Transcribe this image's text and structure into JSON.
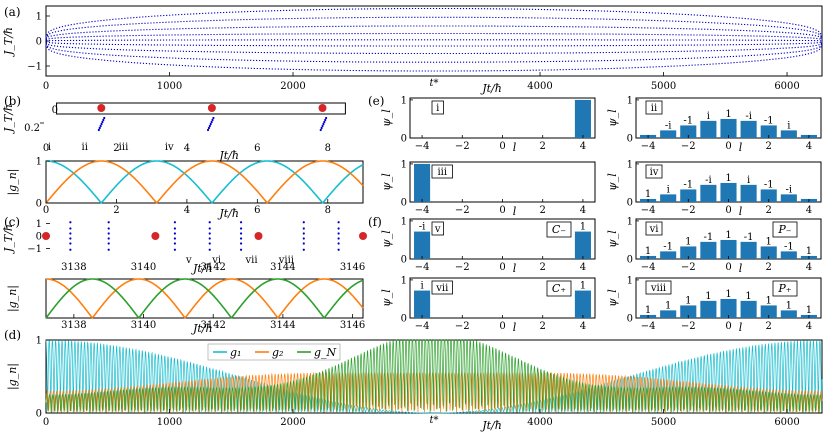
{
  "panel_labels": {
    "a": "(a)",
    "b": "(b)",
    "c": "(c)",
    "d": "(d)",
    "e": "(e)",
    "f": "(f)"
  },
  "axis_labels": {
    "JT": "J_T/ħ",
    "gn": "|g_n|",
    "psi": "ψ_l",
    "Jt": "Jt/ħ",
    "l": "l"
  },
  "tstar": "t*",
  "colors": {
    "g1": "#17becf",
    "g2": "#ff7f0e",
    "gN": "#2ca02c",
    "eig": "#0000cc",
    "red": "#d62728",
    "bar": "#1f77b4"
  },
  "markers_b": [
    "i",
    "ii",
    "iii",
    "iv"
  ],
  "markers_c": [
    "v",
    "vi",
    "vii",
    "viii"
  ],
  "legend": [
    "g₁",
    "g₂",
    "g_N"
  ],
  "chart_data": [
    {
      "id": "a",
      "type": "line",
      "xlabel": "Jt/ħ",
      "ylabel": "J_T/ħ",
      "xlim": [
        0,
        6283
      ],
      "ylim": [
        -1.4,
        1.4
      ],
      "xticks": [
        0,
        1000,
        2000,
        4000,
        5000,
        6000
      ],
      "yticks": [
        -1,
        0,
        1
      ],
      "series_count": 9,
      "mid_amplitudes": [
        1.3,
        0.95,
        0.6,
        0.3,
        0.05,
        -0.2,
        -0.5,
        -0.85,
        -1.2
      ],
      "end_amplitudes": [
        0.12,
        0.09,
        0.06,
        0.03,
        0,
        -0.03,
        -0.06,
        -0.09,
        -0.12
      ]
    },
    {
      "id": "b-top",
      "type": "scatter",
      "xlabel": "Jt/ħ",
      "ylabel": "J_T/ħ",
      "xlim": [
        0,
        9
      ],
      "xticks": [
        0,
        2,
        4,
        6,
        8
      ],
      "yticks": [
        0,
        0.2
      ],
      "red_points_x": [
        1.57,
        4.71,
        7.85
      ],
      "eig_clusters_x": [
        1.5,
        4.6,
        7.8
      ]
    },
    {
      "id": "b-bot",
      "type": "line",
      "xlabel": "Jt/ħ",
      "ylabel": "|g_n|",
      "xlim": [
        0,
        9
      ],
      "ylim": [
        0,
        1
      ],
      "xticks": [
        0,
        2,
        4,
        6,
        8
      ],
      "yticks": [
        0,
        1
      ],
      "series": [
        {
          "name": "g₁",
          "func": "|cos t|"
        },
        {
          "name": "g₂",
          "func": "|sin t|"
        }
      ]
    },
    {
      "id": "c-top",
      "type": "scatter",
      "xlabel": "Jt/ħ",
      "ylabel": "J_T/ħ",
      "xlim": [
        3137.2,
        3146.3
      ],
      "xticks": [
        3138,
        3140,
        3142,
        3144,
        3146
      ],
      "yticks": [
        -1,
        0,
        1
      ],
      "red_points_x": [
        3137.2,
        3140.34,
        3143.3,
        3146.3
      ],
      "eig_clusters_x": [
        3137.9,
        3139.0,
        3140.9,
        3141.9,
        3142.8,
        3144.6,
        3145.6
      ]
    },
    {
      "id": "c-bot",
      "type": "line",
      "xlabel": "Jt/ħ",
      "ylabel": "|g_n|",
      "xlim": [
        3137.2,
        3146.3
      ],
      "ylim": [
        0,
        1
      ],
      "xticks": [
        3138,
        3140,
        3142,
        3144,
        3146
      ],
      "series": [
        {
          "name": "g₂"
        },
        {
          "name": "g_N"
        }
      ]
    },
    {
      "id": "d",
      "type": "line",
      "xlabel": "Jt/ħ",
      "ylabel": "|g_n|",
      "xlim": [
        0,
        6283
      ],
      "ylim": [
        0,
        1
      ],
      "xticks": [
        0,
        1000,
        2000,
        4000,
        5000,
        6000
      ],
      "yticks": [
        0,
        1
      ],
      "series": [
        {
          "name": "g₁"
        },
        {
          "name": "g₂"
        },
        {
          "name": "g_N"
        }
      ]
    },
    {
      "id": "e-f",
      "type": "bar",
      "xlabel": "l",
      "ylabel": "ψ_l",
      "x": [
        -4,
        -3,
        -2,
        -1,
        0,
        1,
        2,
        3,
        4
      ],
      "xticks": [
        -4,
        -2,
        0,
        2,
        4
      ],
      "yticks": [
        0,
        1
      ],
      "panels": [
        {
          "tag": "i",
          "values": [
            0,
            0,
            0,
            0,
            0,
            0,
            0,
            0,
            1
          ],
          "labels": []
        },
        {
          "tag": "iii",
          "values": [
            1,
            0,
            0,
            0,
            0,
            0,
            0,
            0,
            0
          ],
          "labels": []
        },
        {
          "tag": "v",
          "values": [
            0.72,
            0,
            0,
            0,
            0,
            0,
            0,
            0,
            0.72
          ],
          "labels": [
            "-i",
            "",
            "",
            "",
            "",
            "",
            "",
            "",
            "1"
          ],
          "side": "C₋"
        },
        {
          "tag": "vii",
          "values": [
            0.72,
            0,
            0,
            0,
            0,
            0,
            0,
            0,
            0.72
          ],
          "labels": [
            "i",
            "",
            "",
            "",
            "",
            "",
            "",
            "",
            "1"
          ],
          "side": "C₊"
        },
        {
          "tag": "ii",
          "values": [
            0.08,
            0.2,
            0.33,
            0.45,
            0.5,
            0.45,
            0.33,
            0.2,
            0.08
          ],
          "labels": [
            "",
            "-i",
            "-1",
            "i",
            "1",
            "-i",
            "-1",
            "i",
            ""
          ]
        },
        {
          "tag": "iv",
          "values": [
            0.08,
            0.2,
            0.33,
            0.45,
            0.5,
            0.45,
            0.33,
            0.2,
            0.08
          ],
          "labels": [
            "1",
            "i",
            "-1",
            "-i",
            "1",
            "i",
            "-1",
            "-i",
            ""
          ]
        },
        {
          "tag": "vi",
          "values": [
            0.08,
            0.2,
            0.33,
            0.45,
            0.5,
            0.45,
            0.33,
            0.2,
            0.08
          ],
          "labels": [
            "1",
            "-1",
            "1",
            "-1",
            "1",
            "-1",
            "1",
            "-1",
            "1"
          ],
          "side": "P₋"
        },
        {
          "tag": "viii",
          "values": [
            0.08,
            0.2,
            0.33,
            0.45,
            0.5,
            0.45,
            0.33,
            0.2,
            0.08
          ],
          "labels": [
            "1",
            "1",
            "1",
            "1",
            "1",
            "1",
            "1",
            "1",
            "1"
          ],
          "side": "P₊"
        }
      ]
    }
  ]
}
